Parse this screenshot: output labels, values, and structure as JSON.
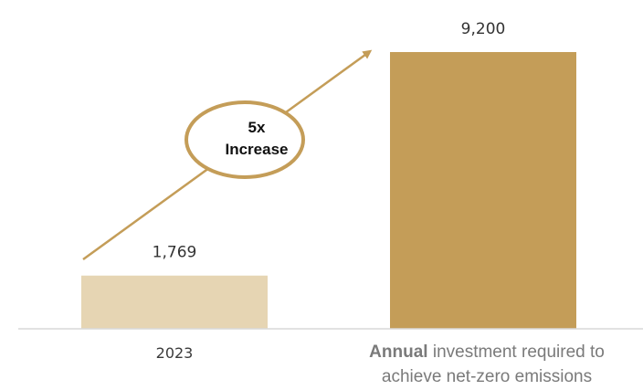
{
  "chart_data": {
    "type": "bar",
    "categories": [
      "2023",
      "Annual investment required to achieve net-zero emissions"
    ],
    "category_display": {
      "first": "2023",
      "second_bold": "Annual",
      "second_line1_rest": " investment required to",
      "second_line2": "achieve net-zero emissions"
    },
    "values": [
      1769,
      9200
    ],
    "data_labels": [
      "1,769",
      "9,200"
    ],
    "colors": [
      "#e6d5b3",
      "#c49d58"
    ],
    "annotation": {
      "line1": "5x",
      "line2": "Increase"
    },
    "arrow_color": "#c49d58",
    "ylim": [
      0,
      9200
    ],
    "grid": false,
    "title": "",
    "xlabel": "",
    "ylabel": ""
  }
}
